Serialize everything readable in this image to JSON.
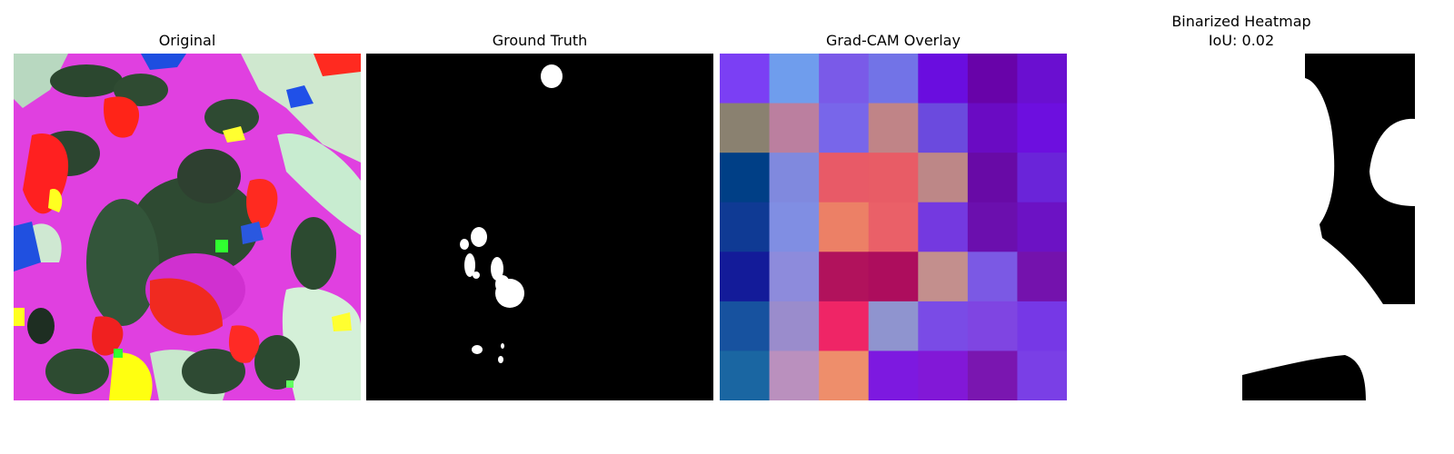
{
  "panels": [
    {
      "title": "Original"
    },
    {
      "title": "Ground Truth"
    },
    {
      "title": "Grad-CAM Overlay"
    },
    {
      "title": "Binarized Heatmap",
      "subtitle": "IoU: 0.02"
    }
  ],
  "gradcam_grid": [
    [
      "#7b3ff4",
      "#6f9ded",
      "#7a5ae8",
      "#7273e7",
      "#6a0ddf",
      "#6803a9",
      "#6a0fd0"
    ],
    [
      "#8a8170",
      "#bb7f9f",
      "#7866ea",
      "#c08487",
      "#6b4ade",
      "#6a0bc3",
      "#6d0fdf"
    ],
    [
      "#003f86",
      "#8089de",
      "#e85a67",
      "#e85c66",
      "#bd8787",
      "#680aa6",
      "#6a24d9"
    ],
    [
      "#0f3a94",
      "#808ee3",
      "#ec8066",
      "#ea6068",
      "#7439e0",
      "#6b0fae",
      "#6c12c4"
    ],
    [
      "#131b99",
      "#8d8bdc",
      "#b1125c",
      "#ad0d5d",
      "#c38f8d",
      "#7b59e4",
      "#7412ad"
    ],
    [
      "#17529f",
      "#9a8ccc",
      "#ef2566",
      "#8f94cf",
      "#7a4be6",
      "#7f45e2",
      "#7638e6"
    ],
    [
      "#1a66a2",
      "#ba90be",
      "#ee8e6b",
      "#7d19e0",
      "#8218d7",
      "#7a16b0",
      "#7a3fe6"
    ]
  ]
}
